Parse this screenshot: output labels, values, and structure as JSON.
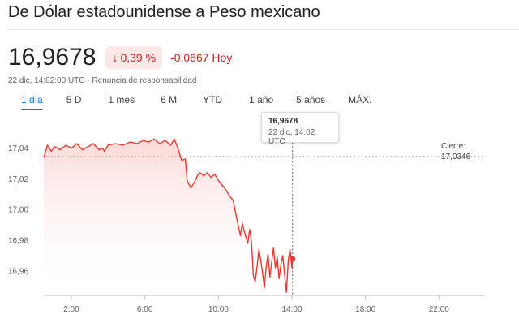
{
  "header": {
    "title": "De Dólar estadounidense a Peso mexicano"
  },
  "quote": {
    "price": "16,9678",
    "percent_change": "0,39 %",
    "absolute_change": "-0,0667 Hoy",
    "timestamp": "22 dic, 14:02:00 UTC",
    "separator": "·",
    "disclaimer": "Renuncia de responsabilidad",
    "change_direction": "down",
    "negative_color": "#c5221f"
  },
  "tabs": [
    {
      "label": "1 día",
      "active": true
    },
    {
      "label": "5 D",
      "active": false
    },
    {
      "label": "1 mes",
      "active": false
    },
    {
      "label": "6 M",
      "active": false
    },
    {
      "label": "YTD",
      "active": false
    },
    {
      "label": "1 año",
      "active": false
    },
    {
      "label": "5 años",
      "active": false
    },
    {
      "label": "MÁX.",
      "active": false
    }
  ],
  "tooltip": {
    "value": "16,9678",
    "time": "22 dic, 14:02 UTC"
  },
  "close": {
    "label": "Cierre:",
    "value": "17,0346"
  },
  "chart_data": {
    "type": "line",
    "line_color": "#e53935",
    "x_unit": "hour of day (UTC)",
    "xlim": [
      0.5,
      24.5
    ],
    "ylim": [
      16.944,
      17.052
    ],
    "x_tick_values": [
      2,
      6,
      10,
      14,
      18,
      22
    ],
    "x_tick_labels": [
      "2:00",
      "6:00",
      "10:00",
      "14:00",
      "18:00",
      "22:00"
    ],
    "y_tick_values": [
      16.96,
      16.98,
      17.0,
      17.02,
      17.04
    ],
    "y_tick_labels": [
      "16,96",
      "16,98",
      "17,00",
      "17,02",
      "17,04"
    ],
    "previous_close": 17.0346,
    "cursor_x": 14.03,
    "cursor_value": 16.9678,
    "grid": false,
    "series": [
      {
        "x": [
          0.5,
          0.7,
          0.9,
          1.1,
          1.4,
          1.7,
          2.0,
          2.3,
          2.6,
          2.9,
          3.2,
          3.5,
          3.7,
          3.8,
          4.0,
          4.4,
          4.8,
          5.2,
          5.6,
          5.9,
          6.2,
          6.5,
          6.8,
          7.1,
          7.4,
          7.6,
          7.8,
          7.9,
          8.0,
          8.2,
          8.3,
          8.5,
          8.7,
          8.9,
          9.0,
          9.2,
          9.4,
          9.6,
          9.8,
          10.0,
          10.2,
          10.4,
          10.6,
          10.8,
          11.0,
          11.2,
          11.3,
          11.4,
          11.5,
          11.6,
          11.7,
          11.8,
          11.9,
          12.0,
          12.1,
          12.2,
          12.3,
          12.4,
          12.5,
          12.6,
          12.7,
          12.8,
          12.9,
          13.0,
          13.1,
          13.2,
          13.3,
          13.4,
          13.5,
          13.6,
          13.7,
          13.8,
          13.9,
          14.0,
          14.03
        ],
        "y": [
          17.034,
          17.042,
          17.038,
          17.041,
          17.039,
          17.042,
          17.04,
          17.043,
          17.039,
          17.041,
          17.043,
          17.039,
          17.04,
          17.038,
          17.042,
          17.043,
          17.042,
          17.044,
          17.043,
          17.045,
          17.044,
          17.046,
          17.043,
          17.045,
          17.042,
          17.046,
          17.04,
          17.036,
          17.032,
          17.033,
          17.019,
          17.014,
          17.018,
          17.023,
          17.024,
          17.022,
          17.024,
          17.021,
          17.023,
          17.019,
          17.016,
          17.013,
          17.009,
          17.006,
          16.994,
          16.983,
          16.991,
          16.986,
          16.982,
          16.978,
          16.987,
          16.979,
          16.957,
          16.953,
          16.962,
          16.974,
          16.967,
          16.959,
          16.949,
          16.963,
          16.971,
          16.956,
          16.966,
          16.975,
          16.962,
          16.969,
          16.955,
          16.964,
          16.97,
          16.958,
          16.946,
          16.967,
          16.974,
          16.962,
          16.9678
        ]
      }
    ]
  }
}
